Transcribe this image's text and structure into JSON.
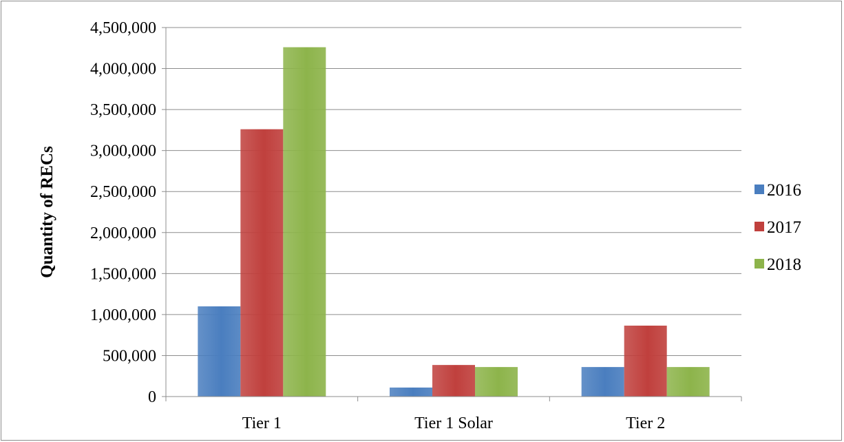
{
  "chart_data": {
    "type": "bar",
    "categories": [
      "Tier 1",
      "Tier 1 Solar",
      "Tier 2"
    ],
    "series": [
      {
        "name": "2016",
        "values": [
          1100000,
          110000,
          360000
        ],
        "color": "#4a7ebf"
      },
      {
        "name": "2017",
        "values": [
          3260000,
          385000,
          865000
        ],
        "color": "#c0403d"
      },
      {
        "name": "2018",
        "values": [
          4260000,
          360000,
          360000
        ],
        "color": "#8db44b"
      }
    ],
    "title": "",
    "xlabel": "",
    "ylabel": "Quantity of RECs",
    "ylim": [
      0,
      4500000
    ],
    "yticks": [
      0,
      500000,
      1000000,
      1500000,
      2000000,
      2500000,
      3000000,
      3500000,
      4000000,
      4500000
    ],
    "ytick_labels": [
      "0",
      "500,000",
      "1,000,000",
      "1,500,000",
      "2,000,000",
      "2,500,000",
      "3,000,000",
      "3,500,000",
      "4,000,000",
      "4,500,000"
    ],
    "grid": true,
    "legend_position": "right"
  }
}
